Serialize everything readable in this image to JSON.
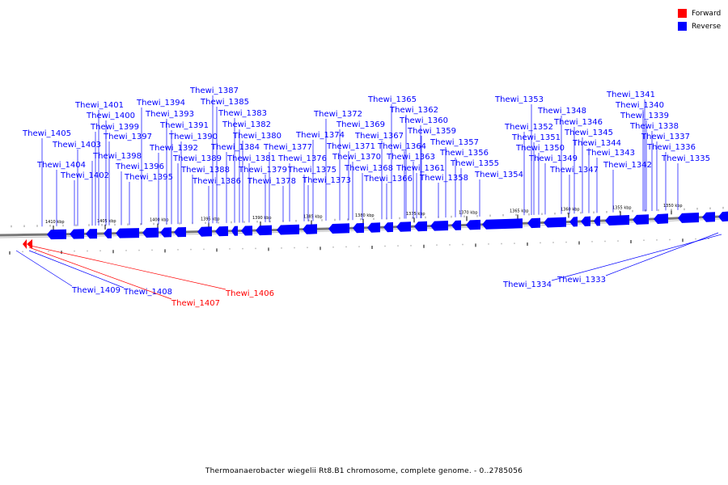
{
  "legend": [
    {
      "label": "Forward",
      "color": "#ff0000"
    },
    {
      "label": "Reverse",
      "color": "#0000ff"
    }
  ],
  "caption": "Thermoanaerobacter wiegelii Rt8.B1 chromosome, complete genome. - 0..2785056",
  "colors": {
    "forward": "#ff0000",
    "reverse": "#0000ff",
    "backbone": "#777777"
  },
  "scale_labels": [
    "1410 kbp",
    "1405 kbp",
    "1400 kbp",
    "1395 kbp",
    "1390 kbp",
    "1385 kbp",
    "1380 kbp",
    "1375 kbp",
    "1370 kbp",
    "1365 kbp",
    "1360 kbp",
    "1355 kbp",
    "1350 kbp"
  ],
  "genes_top": [
    "Thewi_1405",
    "Thewi_1404",
    "Thewi_1403",
    "Thewi_1402",
    "Thewi_1401",
    "Thewi_1400",
    "Thewi_1399",
    "Thewi_1398",
    "Thewi_1397",
    "Thewi_1396",
    "Thewi_1395",
    "Thewi_1394",
    "Thewi_1393",
    "Thewi_1392",
    "Thewi_1391",
    "Thewi_1390",
    "Thewi_1389",
    "Thewi_1388",
    "Thewi_1387",
    "Thewi_1386",
    "Thewi_1385",
    "Thewi_1384",
    "Thewi_1383",
    "Thewi_1382",
    "Thewi_1381",
    "Thewi_1380",
    "Thewi_1379",
    "Thewi_1378",
    "Thewi_1377",
    "Thewi_1376",
    "Thewi_1375",
    "Thewi_1374",
    "Thewi_1373",
    "Thewi_1372",
    "Thewi_1371",
    "Thewi_1370",
    "Thewi_1369",
    "Thewi_1368",
    "Thewi_1367",
    "Thewi_1366",
    "Thewi_1365",
    "Thewi_1364",
    "Thewi_1363",
    "Thewi_1362",
    "Thewi_1361",
    "Thewi_1360",
    "Thewi_1359",
    "Thewi_1358",
    "Thewi_1357",
    "Thewi_1356",
    "Thewi_1355",
    "Thewi_1354",
    "Thewi_1353",
    "Thewi_1352",
    "Thewi_1351",
    "Thewi_1350",
    "Thewi_1349",
    "Thewi_1348",
    "Thewi_1347",
    "Thewi_1346",
    "Thewi_1345",
    "Thewi_1344",
    "Thewi_1343",
    "Thewi_1342",
    "Thewi_1341",
    "Thewi_1340",
    "Thewi_1339",
    "Thewi_1338",
    "Thewi_1337",
    "Thewi_1336",
    "Thewi_1335"
  ],
  "genes_bottom": [
    {
      "name": "Thewi_1409",
      "strand": "reverse"
    },
    {
      "name": "Thewi_1408",
      "strand": "reverse"
    },
    {
      "name": "Thewi_1407",
      "strand": "forward"
    },
    {
      "name": "Thewi_1406",
      "strand": "forward"
    },
    {
      "name": "Thewi_1334",
      "strand": "reverse"
    },
    {
      "name": "Thewi_1333",
      "strand": "reverse"
    }
  ]
}
